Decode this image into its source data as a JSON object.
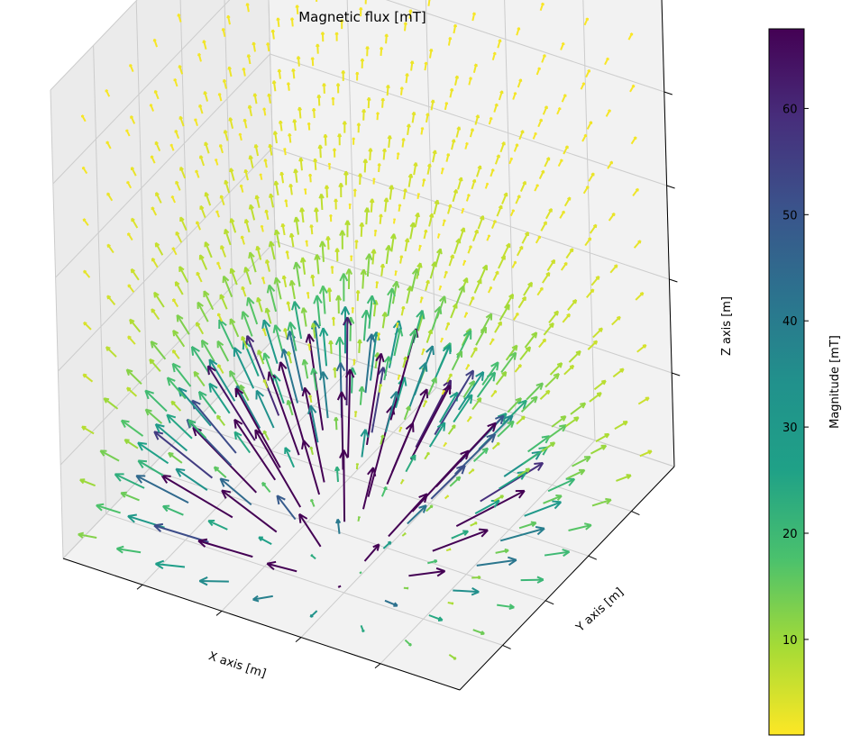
{
  "chart_data": {
    "type": "quiver3d",
    "title": "Magnetic flux [mT]",
    "xlabel": "X axis [m]",
    "ylabel": "Y axis [m]",
    "zlabel": "Z axis [m]",
    "grid": true,
    "tick_labels_visible": false,
    "colormap": "viridis",
    "colorbar": {
      "label": "Magnitude [mT]",
      "range": [
        1,
        67.5
      ],
      "ticks": [
        10,
        20,
        30,
        40,
        50,
        60
      ],
      "tick_labels": [
        "10",
        "20",
        "30",
        "40",
        "50",
        "60"
      ]
    },
    "field": {
      "source": "dipole below grid center",
      "grid_points_per_axis": 9,
      "max_magnitude": 67.5,
      "min_magnitude": 1
    }
  },
  "colors": {
    "pane": "#f2f2f2",
    "pane_side": "#ebebeb",
    "grid": "#cccccc",
    "axis": "#000000"
  }
}
